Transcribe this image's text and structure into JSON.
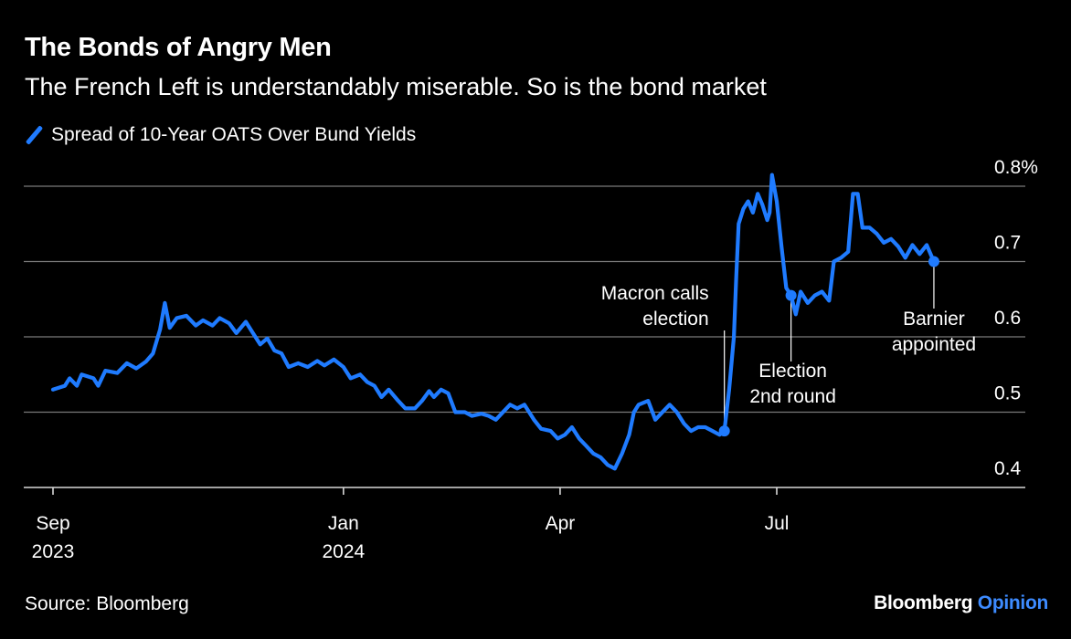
{
  "title": "The Bonds of Angry Men",
  "subtitle": "The French Left is understandably miserable. So is the bond market",
  "footer": {
    "source": "Source: Bloomberg",
    "brand": "Bloomberg",
    "brand_suffix": "Opinion"
  },
  "colors": {
    "background": "#000000",
    "line": "#1f7bff",
    "text": "#ffffff",
    "grid": "#7a7a7a",
    "brand_accent": "#3d8bff"
  },
  "chart_data": {
    "type": "line",
    "title": "The Bonds of Angry Men",
    "subtitle": "The French Left is understandably miserable. So is the bond market",
    "legend": "top-left",
    "grid": true,
    "xlim": [
      "2023-09-01",
      "2024-10-31"
    ],
    "ylim": [
      0.4,
      0.8
    ],
    "y_ticks": [
      {
        "value": 0.8,
        "label": "0.8%"
      },
      {
        "value": 0.7,
        "label": "0.7"
      },
      {
        "value": 0.6,
        "label": "0.6"
      },
      {
        "value": 0.5,
        "label": "0.5"
      },
      {
        "value": 0.4,
        "label": "0.4"
      }
    ],
    "x_ticks": [
      {
        "date": "2023-09-01",
        "label": "Sep",
        "sublabel": "2023"
      },
      {
        "date": "2024-01-01",
        "label": "Jan",
        "sublabel": "2024"
      },
      {
        "date": "2024-04-01",
        "label": "Apr",
        "sublabel": ""
      },
      {
        "date": "2024-07-01",
        "label": "Jul",
        "sublabel": ""
      }
    ],
    "series": [
      {
        "name": "Spread of 10-Year OATS Over Bund Yields",
        "color": "#1f7bff",
        "points": [
          [
            "2023-09-01",
            0.53
          ],
          [
            "2023-09-06",
            0.535
          ],
          [
            "2023-09-08",
            0.545
          ],
          [
            "2023-09-11",
            0.535
          ],
          [
            "2023-09-13",
            0.55
          ],
          [
            "2023-09-18",
            0.545
          ],
          [
            "2023-09-20",
            0.535
          ],
          [
            "2023-09-23",
            0.555
          ],
          [
            "2023-09-28",
            0.552
          ],
          [
            "2023-10-02",
            0.565
          ],
          [
            "2023-10-06",
            0.558
          ],
          [
            "2023-10-10",
            0.567
          ],
          [
            "2023-10-13",
            0.578
          ],
          [
            "2023-10-16",
            0.61
          ],
          [
            "2023-10-18",
            0.645
          ],
          [
            "2023-10-20",
            0.612
          ],
          [
            "2023-10-23",
            0.625
          ],
          [
            "2023-10-27",
            0.628
          ],
          [
            "2023-10-31",
            0.615
          ],
          [
            "2023-11-03",
            0.622
          ],
          [
            "2023-11-07",
            0.615
          ],
          [
            "2023-11-10",
            0.625
          ],
          [
            "2023-11-14",
            0.618
          ],
          [
            "2023-11-17",
            0.605
          ],
          [
            "2023-11-21",
            0.62
          ],
          [
            "2023-11-24",
            0.605
          ],
          [
            "2023-11-27",
            0.59
          ],
          [
            "2023-11-30",
            0.598
          ],
          [
            "2023-12-03",
            0.582
          ],
          [
            "2023-12-06",
            0.578
          ],
          [
            "2023-12-09",
            0.56
          ],
          [
            "2023-12-13",
            0.565
          ],
          [
            "2023-12-17",
            0.56
          ],
          [
            "2023-12-21",
            0.568
          ],
          [
            "2023-12-24",
            0.562
          ],
          [
            "2023-12-28",
            0.57
          ],
          [
            "2024-01-01",
            0.56
          ],
          [
            "2024-01-04",
            0.545
          ],
          [
            "2024-01-08",
            0.55
          ],
          [
            "2024-01-11",
            0.54
          ],
          [
            "2024-01-14",
            0.535
          ],
          [
            "2024-01-17",
            0.52
          ],
          [
            "2024-01-20",
            0.53
          ],
          [
            "2024-01-24",
            0.515
          ],
          [
            "2024-01-27",
            0.505
          ],
          [
            "2024-01-31",
            0.505
          ],
          [
            "2024-02-03",
            0.515
          ],
          [
            "2024-02-06",
            0.528
          ],
          [
            "2024-02-08",
            0.52
          ],
          [
            "2024-02-11",
            0.53
          ],
          [
            "2024-02-14",
            0.525
          ],
          [
            "2024-02-17",
            0.5
          ],
          [
            "2024-02-21",
            0.5
          ],
          [
            "2024-02-24",
            0.495
          ],
          [
            "2024-02-28",
            0.498
          ],
          [
            "2024-03-02",
            0.495
          ],
          [
            "2024-03-05",
            0.49
          ],
          [
            "2024-03-08",
            0.5
          ],
          [
            "2024-03-11",
            0.51
          ],
          [
            "2024-03-14",
            0.505
          ],
          [
            "2024-03-17",
            0.51
          ],
          [
            "2024-03-21",
            0.49
          ],
          [
            "2024-03-24",
            0.478
          ],
          [
            "2024-03-28",
            0.475
          ],
          [
            "2024-03-31",
            0.465
          ],
          [
            "2024-04-03",
            0.47
          ],
          [
            "2024-04-06",
            0.48
          ],
          [
            "2024-04-09",
            0.465
          ],
          [
            "2024-04-12",
            0.455
          ],
          [
            "2024-04-15",
            0.445
          ],
          [
            "2024-04-18",
            0.44
          ],
          [
            "2024-04-21",
            0.43
          ],
          [
            "2024-04-24",
            0.425
          ],
          [
            "2024-04-27",
            0.445
          ],
          [
            "2024-04-30",
            0.47
          ],
          [
            "2024-05-02",
            0.5
          ],
          [
            "2024-05-04",
            0.51
          ],
          [
            "2024-05-08",
            0.515
          ],
          [
            "2024-05-11",
            0.49
          ],
          [
            "2024-05-14",
            0.5
          ],
          [
            "2024-05-17",
            0.51
          ],
          [
            "2024-05-20",
            0.5
          ],
          [
            "2024-05-23",
            0.485
          ],
          [
            "2024-05-26",
            0.475
          ],
          [
            "2024-05-29",
            0.48
          ],
          [
            "2024-06-01",
            0.48
          ],
          [
            "2024-06-04",
            0.475
          ],
          [
            "2024-06-07",
            0.47
          ],
          [
            "2024-06-09",
            0.475
          ],
          [
            "2024-06-11",
            0.53
          ],
          [
            "2024-06-13",
            0.6
          ],
          [
            "2024-06-14",
            0.68
          ],
          [
            "2024-06-15",
            0.75
          ],
          [
            "2024-06-17",
            0.77
          ],
          [
            "2024-06-19",
            0.78
          ],
          [
            "2024-06-21",
            0.765
          ],
          [
            "2024-06-23",
            0.79
          ],
          [
            "2024-06-25",
            0.775
          ],
          [
            "2024-06-27",
            0.755
          ],
          [
            "2024-06-28",
            0.765
          ],
          [
            "2024-06-29",
            0.815
          ],
          [
            "2024-07-01",
            0.78
          ],
          [
            "2024-07-03",
            0.72
          ],
          [
            "2024-07-05",
            0.665
          ],
          [
            "2024-07-07",
            0.655
          ],
          [
            "2024-07-09",
            0.63
          ],
          [
            "2024-07-11",
            0.66
          ],
          [
            "2024-07-14",
            0.645
          ],
          [
            "2024-07-17",
            0.655
          ],
          [
            "2024-07-20",
            0.66
          ],
          [
            "2024-07-23",
            0.648
          ],
          [
            "2024-07-25",
            0.7
          ],
          [
            "2024-07-28",
            0.705
          ],
          [
            "2024-07-31",
            0.713
          ],
          [
            "2024-08-02",
            0.79
          ],
          [
            "2024-08-04",
            0.79
          ],
          [
            "2024-08-06",
            0.745
          ],
          [
            "2024-08-09",
            0.745
          ],
          [
            "2024-08-12",
            0.737
          ],
          [
            "2024-08-15",
            0.725
          ],
          [
            "2024-08-18",
            0.73
          ],
          [
            "2024-08-21",
            0.72
          ],
          [
            "2024-08-24",
            0.705
          ],
          [
            "2024-08-27",
            0.722
          ],
          [
            "2024-08-30",
            0.71
          ],
          [
            "2024-09-02",
            0.722
          ],
          [
            "2024-09-05",
            0.7
          ]
        ]
      }
    ],
    "markers": [
      {
        "date": "2024-06-09",
        "value": 0.475
      },
      {
        "date": "2024-07-07",
        "value": 0.655
      },
      {
        "date": "2024-09-05",
        "value": 0.7
      }
    ],
    "annotations": [
      {
        "id": "macron",
        "lines": [
          "Macron calls",
          "election"
        ],
        "date": "2024-06-09",
        "value": 0.475,
        "position": "above-left"
      },
      {
        "id": "election",
        "lines": [
          "Election",
          "2nd round"
        ],
        "date": "2024-07-07",
        "value": 0.655,
        "position": "below"
      },
      {
        "id": "barnier",
        "lines": [
          "Barnier",
          "appointed"
        ],
        "date": "2024-09-05",
        "value": 0.7,
        "position": "below"
      }
    ]
  }
}
